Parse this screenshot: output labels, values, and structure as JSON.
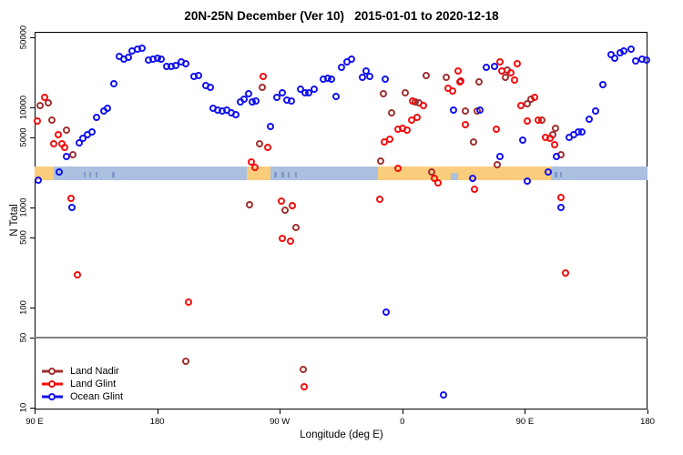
{
  "title": "20N-25N December (Ver 10)   2015-01-01 to 2020-12-18",
  "axes": {
    "x": {
      "label": "Longitude (deg E)",
      "ticks": [
        {
          "pos": 0,
          "label": "90 E"
        },
        {
          "pos": 90,
          "label": "180"
        },
        {
          "pos": 180,
          "label": "90 W"
        },
        {
          "pos": 270,
          "label": "0"
        },
        {
          "pos": 360,
          "label": "90 E"
        },
        {
          "pos": 450,
          "label": "180"
        }
      ],
      "span_deg": [
        0,
        450
      ],
      "note_start": "axis begins at 90 E and wraps eastward 450 degrees"
    },
    "y": {
      "label": "N Total",
      "scale": "log10",
      "range": [
        10,
        50000
      ],
      "ticks": [
        10,
        50,
        100,
        500,
        1000,
        5000,
        10000,
        50000
      ]
    }
  },
  "colors": {
    "land_nadir": "#A03030",
    "land_glint": "#F50D0D",
    "ocean_glint": "#1212F0",
    "land_band": "#FACD7C",
    "ocean_band": "#ABC0E0",
    "island_speck": "#7E99C8",
    "reference_line": "#808080"
  },
  "legend": [
    {
      "series": "land_nadir",
      "label": "Land Nadir"
    },
    {
      "series": "land_glint",
      "label": "Land Glint"
    },
    {
      "series": "ocean_glint",
      "label": "Ocean Glint"
    }
  ],
  "chart_data": {
    "type": "scatter",
    "title": "20N-25N December (Ver 10)   2015-01-01 to 2020-12-18",
    "xlabel": "Longitude (deg E)",
    "ylabel": "N Total",
    "x_unit": "degrees east of 90E along plotted axis (0-450)",
    "reference_line_y": 50,
    "map_strip": {
      "description": "land/ocean strip for 20N-25N drawn across plot",
      "n_range_approx": [
        1900,
        2600
      ],
      "land_segments_deg": [
        [
          0,
          14.2
        ],
        [
          155.5,
          173.5
        ],
        [
          252.1,
          379.1
        ]
      ],
      "ocean_notches_deg": [
        [
          305.5,
          311
        ]
      ],
      "island_specks_deg": [
        [
          36,
          1.4
        ],
        [
          40,
          1.4
        ],
        [
          44.5,
          1.4
        ],
        [
          57,
          2
        ],
        [
          176,
          2
        ],
        [
          181,
          2
        ],
        [
          186,
          1.4
        ],
        [
          191,
          1.4
        ],
        [
          382,
          2
        ],
        [
          386,
          1.4
        ]
      ]
    },
    "series": [
      {
        "name": "Land Nadir",
        "key": "land_nadir",
        "points": [
          [
            4.0,
            10400
          ],
          [
            10.0,
            11100
          ],
          [
            12.7,
            7510
          ],
          [
            23.4,
            5870
          ],
          [
            28.1,
            3370
          ],
          [
            111.0,
            29
          ],
          [
            157.8,
            1060
          ],
          [
            165.2,
            4330
          ],
          [
            167.2,
            15900
          ],
          [
            183.9,
            936
          ],
          [
            191.9,
            629
          ],
          [
            197.2,
            24
          ],
          [
            254.1,
            2900
          ],
          [
            256.1,
            13700
          ],
          [
            262.1,
            8810
          ],
          [
            272.1,
            13900
          ],
          [
            279.5,
            11300
          ],
          [
            282.2,
            11000
          ],
          [
            287.5,
            20800
          ],
          [
            291.5,
            2260
          ],
          [
            302.2,
            20000
          ],
          [
            312.9,
            18300
          ],
          [
            316.3,
            9170
          ],
          [
            322.3,
            4520
          ],
          [
            325.0,
            9170
          ],
          [
            326.3,
            17900
          ],
          [
            339.7,
            2690
          ],
          [
            345.7,
            20000
          ],
          [
            347.0,
            23600
          ],
          [
            361.7,
            10800
          ],
          [
            364.4,
            12000
          ],
          [
            372.4,
            7510
          ],
          [
            380.4,
            5390
          ],
          [
            382.4,
            6160
          ],
          [
            386.4,
            3370
          ]
        ]
      },
      {
        "name": "Land Glint",
        "key": "land_glint",
        "points": [
          [
            7.4,
            12500
          ],
          [
            2.0,
            7330
          ],
          [
            17.4,
            5330
          ],
          [
            14.0,
            4330
          ],
          [
            20.1,
            4330
          ],
          [
            22.1,
            3990
          ],
          [
            26.7,
            1230
          ],
          [
            31.4,
            213
          ],
          [
            113.0,
            113
          ],
          [
            159.1,
            2840
          ],
          [
            161.8,
            2510
          ],
          [
            167.8,
            20400
          ],
          [
            171.2,
            3990
          ],
          [
            181.2,
            1160
          ],
          [
            189.2,
            1040
          ],
          [
            181.9,
            490
          ],
          [
            187.9,
            460
          ],
          [
            197.9,
            16.2
          ],
          [
            253.4,
            1210
          ],
          [
            256.8,
            4520
          ],
          [
            260.8,
            4800
          ],
          [
            266.8,
            6020
          ],
          [
            270.1,
            6160
          ],
          [
            273.5,
            5870
          ],
          [
            276.8,
            7510
          ],
          [
            280.8,
            7990
          ],
          [
            277.5,
            11600
          ],
          [
            285.5,
            10400
          ],
          [
            266.8,
            2450
          ],
          [
            293.5,
            1950
          ],
          [
            296.2,
            1770
          ],
          [
            303.6,
            15600
          ],
          [
            306.9,
            14600
          ],
          [
            310.9,
            23300
          ],
          [
            312.3,
            17900
          ],
          [
            323.0,
            1510
          ],
          [
            316.3,
            6700
          ],
          [
            339.0,
            6020
          ],
          [
            341.7,
            28600
          ],
          [
            343.0,
            23300
          ],
          [
            349.7,
            22300
          ],
          [
            352.4,
            18700
          ],
          [
            354.4,
            27400
          ],
          [
            357.0,
            10400
          ],
          [
            367.1,
            12500
          ],
          [
            361.7,
            7330
          ],
          [
            369.7,
            7510
          ],
          [
            375.1,
            5030
          ],
          [
            378.4,
            4890
          ],
          [
            381.7,
            4200
          ],
          [
            386.4,
            1260
          ],
          [
            389.7,
            222
          ]
        ]
      },
      {
        "name": "Ocean Glint",
        "key": "ocean_glint",
        "points": [
          [
            2.7,
            1880
          ],
          [
            18.1,
            2260
          ],
          [
            23.4,
            3230
          ],
          [
            27.4,
            1000
          ],
          [
            32.8,
            4420
          ],
          [
            35.4,
            4890
          ],
          [
            38.8,
            5390
          ],
          [
            42.1,
            5630
          ],
          [
            45.5,
            7880
          ],
          [
            50.8,
            9170
          ],
          [
            53.5,
            9770
          ],
          [
            58.2,
            17200
          ],
          [
            62.2,
            32300
          ],
          [
            65.5,
            30400
          ],
          [
            68.9,
            31700
          ],
          [
            71.5,
            36700
          ],
          [
            75.6,
            38300
          ],
          [
            78.9,
            39100
          ],
          [
            83.6,
            29700
          ],
          [
            86.9,
            30400
          ],
          [
            90.3,
            31000
          ],
          [
            92.9,
            30400
          ],
          [
            97.0,
            25700
          ],
          [
            100.3,
            25700
          ],
          [
            103.6,
            26300
          ],
          [
            107.7,
            28600
          ],
          [
            111.0,
            27400
          ],
          [
            117.0,
            20400
          ],
          [
            120.4,
            20800
          ],
          [
            125.7,
            16600
          ],
          [
            129.1,
            15900
          ],
          [
            131.1,
            9770
          ],
          [
            134.4,
            9370
          ],
          [
            137.7,
            9170
          ],
          [
            141.1,
            9370
          ],
          [
            144.4,
            8810
          ],
          [
            147.8,
            8420
          ],
          [
            151.1,
            11300
          ],
          [
            153.8,
            12000
          ],
          [
            157.1,
            13700
          ],
          [
            159.8,
            11300
          ],
          [
            162.5,
            11600
          ],
          [
            173.2,
            6420
          ],
          [
            177.9,
            12500
          ],
          [
            181.9,
            13900
          ],
          [
            185.2,
            11800
          ],
          [
            188.6,
            11600
          ],
          [
            195.2,
            15200
          ],
          [
            198.6,
            13900
          ],
          [
            201.3,
            13900
          ],
          [
            205.3,
            15200
          ],
          [
            212.0,
            19200
          ],
          [
            215.3,
            19600
          ],
          [
            218.0,
            19200
          ],
          [
            221.3,
            12800
          ],
          [
            225.3,
            25200
          ],
          [
            229.3,
            28600
          ],
          [
            232.7,
            30400
          ],
          [
            240.7,
            19900
          ],
          [
            243.4,
            23300
          ],
          [
            246.1,
            20400
          ],
          [
            257.4,
            19200
          ],
          [
            258.1,
            90
          ],
          [
            300.2,
            13.4
          ],
          [
            307.6,
            9370
          ],
          [
            321.6,
            1950
          ],
          [
            327.0,
            9370
          ],
          [
            331.6,
            25200
          ],
          [
            337.7,
            25700
          ],
          [
            341.7,
            3230
          ],
          [
            358.4,
            4710
          ],
          [
            361.7,
            1830
          ],
          [
            377.1,
            2260
          ],
          [
            383.1,
            3230
          ],
          [
            386.4,
            1000
          ],
          [
            392.5,
            5030
          ],
          [
            395.8,
            5390
          ],
          [
            399.1,
            5630
          ],
          [
            401.8,
            5690
          ],
          [
            407.2,
            7670
          ],
          [
            411.9,
            9170
          ],
          [
            417.2,
            16900
          ],
          [
            423.2,
            33700
          ],
          [
            425.9,
            31000
          ],
          [
            429.9,
            35200
          ],
          [
            432.6,
            36700
          ],
          [
            437.9,
            38300
          ],
          [
            441.2,
            29100
          ],
          [
            445.9,
            30400
          ],
          [
            449.3,
            29700
          ]
        ]
      }
    ]
  }
}
